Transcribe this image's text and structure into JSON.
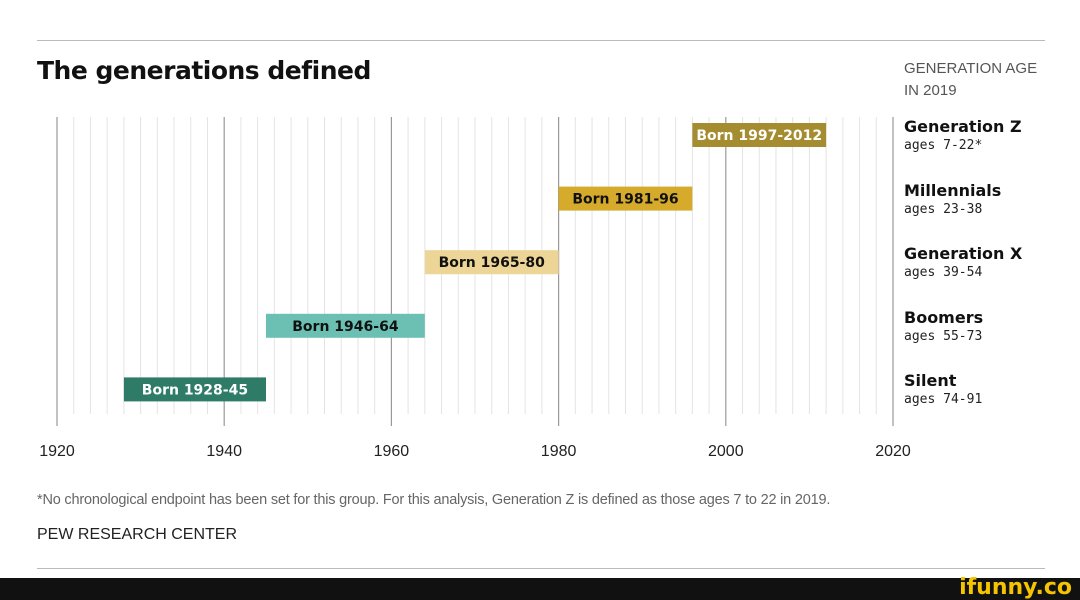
{
  "chart_data": {
    "type": "bar",
    "orientation": "horizontal-range",
    "title": "The generations defined",
    "legend_header": "GENERATION AGE IN 2019",
    "xlim": [
      1920,
      2020
    ],
    "xticks": [
      1920,
      1940,
      1960,
      1980,
      2000,
      2020
    ],
    "grid": true,
    "series": [
      {
        "name": "Generation Z",
        "ages": "ages 7-22*",
        "start": 1997,
        "end": 2012,
        "label": "Born 1997-2012",
        "color": "#a58c30",
        "text_color": "#ffffff"
      },
      {
        "name": "Millennials",
        "ages": "ages 23-38",
        "start": 1981,
        "end": 1996,
        "label": "Born 1981-96",
        "color": "#d6ab2c",
        "text_color": "#111111"
      },
      {
        "name": "Generation X",
        "ages": "ages 39-54",
        "start": 1965,
        "end": 1980,
        "label": "Born 1965-80",
        "color": "#ecd596",
        "text_color": "#111111"
      },
      {
        "name": "Boomers",
        "ages": "ages 55-73",
        "start": 1946,
        "end": 1964,
        "label": "Born 1946-64",
        "color": "#6cc0b3",
        "text_color": "#111111"
      },
      {
        "name": "Silent",
        "ages": "ages 74-91",
        "start": 1928,
        "end": 1945,
        "label": "Born 1928-45",
        "color": "#2e7b68",
        "text_color": "#ffffff"
      }
    ],
    "note": "*No chronological endpoint has been set for this group. For this analysis, Generation Z is defined as those ages 7 to 22 in 2019.",
    "source": "PEW RESEARCH CENTER"
  },
  "header": {
    "age_line1": "GENERATION AGE",
    "age_line2": "IN 2019"
  },
  "watermark": "ifunny.co"
}
